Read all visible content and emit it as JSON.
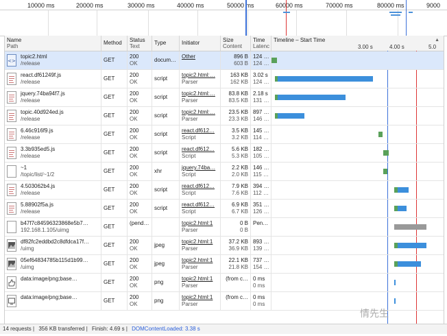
{
  "overview": {
    "ticks": [
      "10000 ms",
      "20000 ms",
      "30000 ms",
      "40000 ms",
      "50000 ms",
      "60000 ms",
      "70000 ms",
      "80000 ms",
      "9000"
    ]
  },
  "columns": {
    "name": "Name",
    "path": "Path",
    "method": "Method",
    "status": "Status",
    "text": "Text",
    "type": "Type",
    "initiator": "Initiator",
    "size": "Size",
    "content": "Content",
    "time": "Time",
    "latency": "Latenc",
    "timeline": "Timeline – Start Time",
    "sort_icon": "▲",
    "wf_ticks": [
      "3.00 s",
      "4.00 s",
      "5.0"
    ]
  },
  "rows": [
    {
      "name": "topic2.html",
      "path": "/release",
      "method": "GET",
      "status": "200",
      "status_text": "OK",
      "type": "docum…",
      "initiator": "Other",
      "initiator2": "",
      "size": "896 B",
      "content": "603 B",
      "time": "124 …",
      "latency": "124 …",
      "icon": "html-file-icon",
      "bars": [
        [
          0.0,
          0.03,
          "wait"
        ]
      ]
    },
    {
      "name": "react.df61249f.js",
      "path": "/release",
      "method": "GET",
      "status": "200",
      "status_text": "OK",
      "type": "script",
      "initiator": "topic2.html:…",
      "initiator2": "Parser",
      "size": "163 KB",
      "content": "162 KB",
      "time": "3.02 s",
      "latency": "124 …",
      "icon": "script-file-icon",
      "bars": [
        [
          0.02,
          0.035,
          "wait"
        ],
        [
          0.035,
          0.59,
          "recv"
        ]
      ]
    },
    {
      "name": "jquery.74ba94f7.js",
      "path": "/release",
      "method": "GET",
      "status": "200",
      "status_text": "OK",
      "type": "script",
      "initiator": "topic2.html:…",
      "initiator2": "Parser",
      "size": "83.8 KB",
      "content": "83.5 KB",
      "time": "2.18 s",
      "latency": "131 …",
      "icon": "script-file-icon",
      "bars": [
        [
          0.02,
          0.035,
          "wait"
        ],
        [
          0.035,
          0.43,
          "recv"
        ]
      ]
    },
    {
      "name": "topic.40d924ed.js",
      "path": "/release",
      "method": "GET",
      "status": "200",
      "status_text": "OK",
      "type": "script",
      "initiator": "topic2.html:…",
      "initiator2": "Parser",
      "size": "23.5 KB",
      "content": "23.3 KB",
      "time": "897 …",
      "latency": "146 …",
      "icon": "script-file-icon",
      "bars": [
        [
          0.02,
          0.035,
          "wait"
        ],
        [
          0.035,
          0.19,
          "recv"
        ]
      ]
    },
    {
      "name": "6.46c916f9.js",
      "path": "/release",
      "method": "GET",
      "status": "200",
      "status_text": "OK",
      "type": "script",
      "initiator": "react.df612…",
      "initiator2": "Script",
      "size": "3.5 KB",
      "content": "3.2 KB",
      "time": "145 …",
      "latency": "114 …",
      "icon": "script-file-icon",
      "bars": [
        [
          0.62,
          0.645,
          "wait"
        ]
      ]
    },
    {
      "name": "3.3b935ed5.js",
      "path": "/release",
      "method": "GET",
      "status": "200",
      "status_text": "OK",
      "type": "script",
      "initiator": "react.df612…",
      "initiator2": "Script",
      "size": "5.6 KB",
      "content": "5.3 KB",
      "time": "182 …",
      "latency": "105 …",
      "icon": "script-file-icon",
      "bars": [
        [
          0.65,
          0.68,
          "wait"
        ]
      ]
    },
    {
      "name": "~1",
      "path": "/topic/list/~1/2",
      "method": "GET",
      "status": "200",
      "status_text": "OK",
      "type": "xhr",
      "initiator": "jquery.74ba…",
      "initiator2": "Script",
      "size": "2.2 KB",
      "content": "2.0 KB",
      "time": "146 …",
      "latency": "115 …",
      "icon": "blank-file-icon",
      "bars": [
        [
          0.65,
          0.675,
          "wait"
        ]
      ]
    },
    {
      "name": "4.503062b4.js",
      "path": "/release",
      "method": "GET",
      "status": "200",
      "status_text": "OK",
      "type": "script",
      "initiator": "react.df612…",
      "initiator2": "Script",
      "size": "7.9 KB",
      "content": "7.6 KB",
      "time": "394 …",
      "latency": "112 …",
      "icon": "script-file-icon",
      "bars": [
        [
          0.715,
          0.735,
          "wait"
        ],
        [
          0.735,
          0.795,
          "recv"
        ]
      ]
    },
    {
      "name": "5.88902f5a.js",
      "path": "/release",
      "method": "GET",
      "status": "200",
      "status_text": "OK",
      "type": "script",
      "initiator": "react.df612…",
      "initiator2": "Script",
      "size": "6.9 KB",
      "content": "6.7 KB",
      "time": "351 …",
      "latency": "126 …",
      "icon": "script-file-icon",
      "bars": [
        [
          0.715,
          0.735,
          "wait"
        ],
        [
          0.735,
          0.785,
          "recv"
        ]
      ]
    },
    {
      "name": "b47f7c84596323868e5b7…",
      "path": "192.168.1.105/uimg",
      "method": "GET",
      "status": "(pend…",
      "status_text": "",
      "type": "",
      "initiator": "topic2.html:1",
      "initiator2": "Parser",
      "size": "0 B",
      "content": "0 B",
      "time": "Pen…",
      "latency": "",
      "icon": "blank-file-icon",
      "bars": [
        [
          0.715,
          0.9,
          "pend"
        ]
      ]
    },
    {
      "name": "df82fc2eddbd2c8dfdca17f…",
      "path": "/uimg",
      "method": "GET",
      "status": "200",
      "status_text": "OK",
      "type": "jpeg",
      "initiator": "topic2.html:1",
      "initiator2": "Parser",
      "size": "37.2 KB",
      "content": "36.9 KB",
      "time": "893 …",
      "latency": "139 …",
      "icon": "image-file-icon",
      "bars": [
        [
          0.715,
          0.735,
          "wait"
        ],
        [
          0.735,
          0.9,
          "recv"
        ]
      ]
    },
    {
      "name": "05ef64834785b115d1b99…",
      "path": "/uimg",
      "method": "GET",
      "status": "200",
      "status_text": "OK",
      "type": "jpeg",
      "initiator": "topic2.html:1",
      "initiator2": "Parser",
      "size": "22.1 KB",
      "content": "21.8 KB",
      "time": "737 …",
      "latency": "154 …",
      "icon": "image-file-icon",
      "bars": [
        [
          0.715,
          0.735,
          "wait"
        ],
        [
          0.735,
          0.87,
          "recv"
        ]
      ]
    },
    {
      "name": "data:image/png;base…",
      "path": "",
      "method": "GET",
      "status": "200",
      "status_text": "OK",
      "type": "png",
      "initiator": "topic2.html:1",
      "initiator2": "Parser",
      "size": "(from c…",
      "content": "",
      "time": "0 ms",
      "latency": "0 ms",
      "icon": "thumbs-up-image-icon",
      "bars": [
        [
          0.715,
          0.722,
          "recv"
        ]
      ]
    },
    {
      "name": "data:image/png;base…",
      "path": "",
      "method": "GET",
      "status": "200",
      "status_text": "OK",
      "type": "png",
      "initiator": "topic2.html:1",
      "initiator2": "Parser",
      "size": "(from c…",
      "content": "",
      "time": "0 ms",
      "latency": "0 ms",
      "icon": "monitor-image-icon",
      "bars": [
        [
          0.715,
          0.722,
          "recv"
        ]
      ]
    }
  ],
  "status_bar": {
    "requests": "14 requests",
    "transferred": "356 KB transferred",
    "finish": "Finish: 4.69 s",
    "dcl": "DOMContentLoaded: 3.38 s"
  },
  "watermark": "情先生",
  "colors": {
    "dcl_line": "#3a6fd8",
    "load_line": "#d33333",
    "waiting": "#5aa15a",
    "receiving": "#3c8fdc",
    "pending": "#999999",
    "selected_row": "#dbe8fb"
  }
}
